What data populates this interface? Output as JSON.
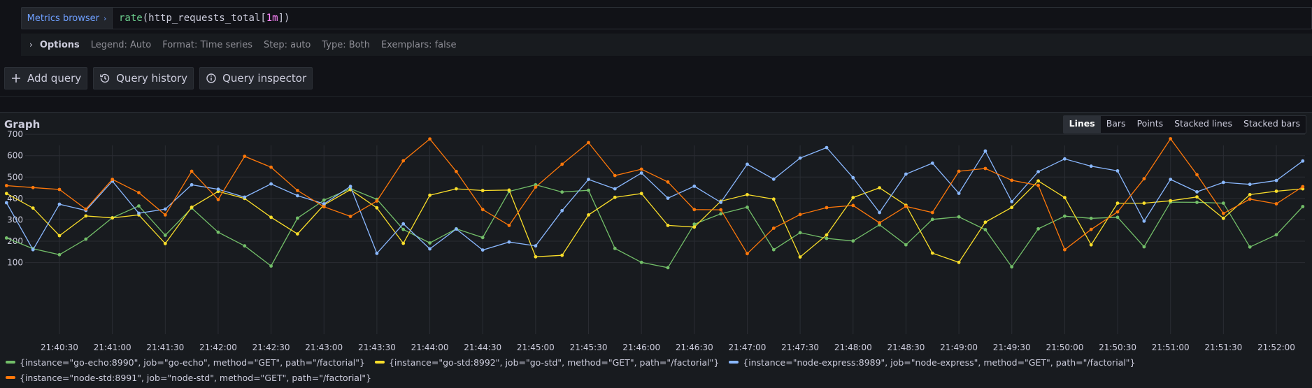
{
  "query": {
    "metrics_browser_label": "Metrics browser",
    "fn": "rate",
    "metric": "http_requests_total",
    "range": "1m"
  },
  "options": {
    "label": "Options",
    "legend": "Legend: Auto",
    "format": "Format: Time series",
    "step": "Step: auto",
    "type": "Type: Both",
    "exemplars": "Exemplars: false"
  },
  "actions": {
    "add_query": "Add query",
    "query_history": "Query history",
    "query_inspector": "Query inspector"
  },
  "graph": {
    "title": "Graph",
    "view_modes": [
      "Lines",
      "Bars",
      "Points",
      "Stacked lines",
      "Stacked bars"
    ],
    "active_view": "Lines"
  },
  "chart_data": {
    "type": "line",
    "title": "",
    "xlabel": "",
    "ylabel": "",
    "ylim": [
      30,
      720
    ],
    "yticks": [
      100,
      200,
      300,
      400,
      500,
      600,
      700
    ],
    "x_start": "21:40:00",
    "x_end": "21:52:30",
    "x_step_seconds": 15,
    "xticks": [
      "21:40:30",
      "21:41:00",
      "21:41:30",
      "21:42:00",
      "21:42:30",
      "21:43:00",
      "21:43:30",
      "21:44:00",
      "21:44:30",
      "21:45:00",
      "21:45:30",
      "21:46:00",
      "21:46:30",
      "21:47:00",
      "21:47:30",
      "21:48:00",
      "21:48:30",
      "21:49:00",
      "21:49:30",
      "21:50:00",
      "21:50:30",
      "21:51:00",
      "21:51:30",
      "21:52:00"
    ],
    "grid": true,
    "legend_position": "bottom",
    "series": [
      {
        "name": "{instance=\"go-echo:8990\", job=\"go-echo\", method=\"GET\", path=\"/factorial\"}",
        "color": "#73bf69",
        "values": [
          215,
          165,
          137,
          210,
          310,
          365,
          228,
          355,
          242,
          178,
          84,
          308,
          392,
          446,
          396,
          255,
          192,
          258,
          217,
          433,
          464,
          430,
          438,
          166,
          101,
          76,
          280,
          328,
          359,
          160,
          240,
          213,
          201,
          277,
          183,
          302,
          314,
          254,
          80,
          258,
          317,
          307,
          312,
          174,
          383,
          382,
          378,
          173,
          230,
          362
        ]
      },
      {
        "name": "{instance=\"go-std:8992\", job=\"go-std\", method=\"GET\", path=\"/factorial\"}",
        "color": "#fade2a",
        "values": [
          423,
          355,
          226,
          318,
          309,
          323,
          189,
          359,
          433,
          400,
          312,
          234,
          370,
          441,
          356,
          190,
          415,
          445,
          437,
          439,
          127,
          134,
          323,
          405,
          423,
          274,
          266,
          387,
          418,
          397,
          126,
          229,
          404,
          450,
          368,
          144,
          101,
          289,
          358,
          482,
          404,
          183,
          378,
          378,
          389,
          407,
          307,
          418,
          434,
          445
        ]
      },
      {
        "name": "{instance=\"node-express:8989\", job=\"node-express\", method=\"GET\", path=\"/factorial\"}",
        "color": "#8ab8ff",
        "values": [
          380,
          160,
          373,
          344,
          481,
          331,
          350,
          464,
          443,
          406,
          468,
          413,
          375,
          456,
          143,
          281,
          164,
          257,
          159,
          196,
          178,
          343,
          489,
          445,
          519,
          401,
          457,
          382,
          560,
          490,
          589,
          638,
          497,
          334,
          514,
          565,
          424,
          622,
          385,
          525,
          585,
          551,
          529,
          294,
          489,
          431,
          475,
          466,
          484,
          575
        ]
      },
      {
        "name": "{instance=\"node-std:8991\", job=\"node-std\", method=\"GET\", path=\"/factorial\"}",
        "color": "#ff780a",
        "values": [
          460,
          451,
          442,
          350,
          489,
          427,
          323,
          527,
          395,
          597,
          546,
          437,
          361,
          316,
          388,
          576,
          678,
          526,
          348,
          274,
          453,
          560,
          661,
          507,
          537,
          477,
          348,
          347,
          142,
          261,
          325,
          357,
          367,
          286,
          363,
          334,
          527,
          540,
          485,
          461,
          160,
          255,
          337,
          492,
          679,
          511,
          330,
          397,
          375,
          455
        ]
      }
    ]
  }
}
